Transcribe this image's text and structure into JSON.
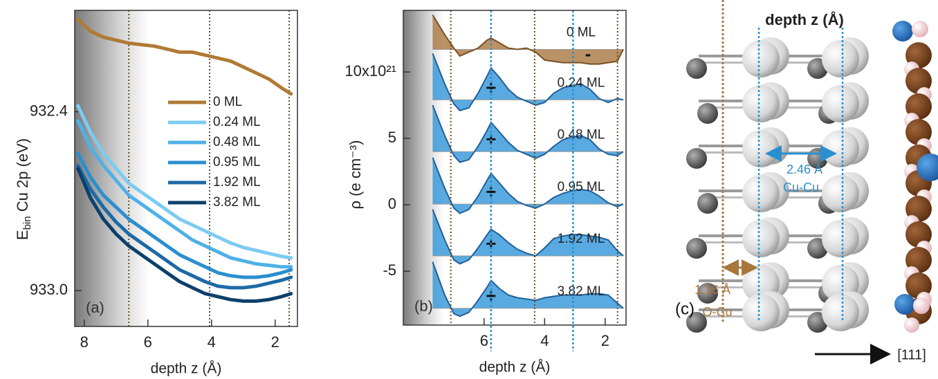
{
  "chart_data": [
    {
      "type": "line",
      "panel": "(a)",
      "xlabel": "depth z (Å)",
      "ylabel": [
        "E",
        "bin",
        " Cu 2p (eV)"
      ],
      "xlim": [
        8.3,
        1.3
      ],
      "ylim": [
        933.12,
        932.06
      ],
      "xticks": [
        8,
        6,
        4,
        2
      ],
      "yticks": [
        932.4,
        {
          "value": 933,
          "label": "933.0"
        }
      ],
      "layer_lines": [
        6.6,
        4.06,
        1.56
      ],
      "x": [
        8.2,
        7.8,
        7.4,
        7.0,
        6.6,
        6.2,
        5.8,
        5.4,
        5.0,
        4.6,
        4.2,
        3.8,
        3.4,
        3.0,
        2.6,
        2.2,
        1.8,
        1.5
      ],
      "series": [
        {
          "name": "0 ML",
          "color": "#b07a35",
          "values": [
            932.09,
            932.13,
            932.15,
            932.16,
            932.17,
            932.175,
            932.18,
            932.19,
            932.2,
            932.2,
            932.21,
            932.22,
            932.23,
            932.25,
            932.27,
            932.29,
            932.32,
            932.34
          ]
        },
        {
          "name": "0.24 ML",
          "color": "#7ccbf2",
          "values": [
            932.38,
            932.47,
            932.54,
            932.59,
            932.64,
            932.67,
            932.7,
            932.73,
            932.76,
            932.78,
            932.8,
            932.82,
            932.84,
            932.855,
            932.865,
            932.875,
            932.885,
            932.89
          ]
        },
        {
          "name": "0.48 ML",
          "color": "#4fb0e8",
          "values": [
            932.43,
            932.52,
            932.58,
            932.63,
            932.68,
            932.71,
            932.74,
            932.77,
            932.8,
            932.83,
            932.85,
            932.87,
            932.89,
            932.9,
            932.91,
            932.915,
            932.92,
            932.92
          ]
        },
        {
          "name": "0.95 ML",
          "color": "#2a8fd0",
          "values": [
            932.54,
            932.62,
            932.68,
            932.72,
            932.76,
            932.79,
            932.82,
            932.85,
            932.88,
            932.9,
            932.92,
            932.94,
            932.95,
            932.955,
            932.955,
            932.95,
            932.94,
            932.93
          ]
        },
        {
          "name": "1.92 ML",
          "color": "#1c6aa6",
          "values": [
            932.58,
            932.66,
            932.72,
            932.77,
            932.81,
            932.84,
            932.87,
            932.9,
            932.93,
            932.95,
            932.97,
            932.985,
            932.99,
            932.99,
            932.985,
            932.975,
            932.965,
            932.955
          ]
        },
        {
          "name": "3.82 ML",
          "color": "#0d3f6b",
          "values": [
            932.59,
            932.69,
            932.76,
            932.81,
            932.85,
            932.88,
            932.91,
            932.94,
            932.97,
            932.99,
            933.01,
            933.02,
            933.03,
            933.035,
            933.035,
            933.03,
            933.02,
            933.01
          ]
        }
      ]
    },
    {
      "type": "area",
      "panel": "(b)",
      "xlabel": "depth z (Å)",
      "ylabel": "ρ (e cm⁻³)",
      "xlim": [
        8.67,
        1.31
      ],
      "ylim": [
        -9.06,
        14.64
      ],
      "xticks": [
        6,
        4,
        2
      ],
      "yticks": [
        -5,
        0,
        5,
        {
          "value": 10,
          "label": "10x10²¹"
        }
      ],
      "layer_lines": [
        7.1,
        4.33,
        1.59
      ],
      "peak_lines": [
        5.77,
        3.06
      ],
      "x": [
        7.7,
        7.3,
        7.0,
        6.8,
        6.5,
        6.2,
        5.9,
        5.77,
        5.5,
        5.2,
        4.9,
        4.6,
        4.3,
        4.0,
        3.7,
        3.4,
        3.1,
        2.8,
        2.5,
        2.2,
        1.9,
        1.6,
        1.4
      ],
      "series": [
        {
          "name": "0 ML",
          "sign": "-",
          "color": "#a8773e",
          "values": [
            14.3,
            12.8,
            11.8,
            11.2,
            11.5,
            11.8,
            12.4,
            12.55,
            12.2,
            11.8,
            11.7,
            11.8,
            11.5,
            10.9,
            10.8,
            10.7,
            10.7,
            10.7,
            10.6,
            10.6,
            10.7,
            10.8,
            11.7
          ]
        },
        {
          "name": "0.24 ML",
          "sign": "+",
          "color": "#2f95d8",
          "values": [
            11.4,
            9.1,
            7.6,
            7.1,
            7.3,
            8.4,
            9.7,
            10.3,
            9.6,
            8.7,
            8.1,
            7.8,
            7.5,
            7.7,
            8.4,
            8.8,
            9.0,
            9.1,
            8.7,
            8.0,
            7.7,
            8.0,
            7.9
          ]
        },
        {
          "name": "0.48 ML",
          "sign": "+",
          "color": "#2f95d8",
          "values": [
            7.5,
            5.2,
            3.7,
            3.2,
            3.4,
            4.4,
            5.6,
            6.2,
            5.5,
            4.7,
            4.1,
            3.8,
            3.5,
            3.8,
            4.4,
            4.9,
            5.1,
            5.2,
            4.9,
            4.2,
            3.8,
            3.7,
            4.0
          ]
        },
        {
          "name": "0.95 ML",
          "sign": "+",
          "color": "#2f95d8",
          "values": [
            3.55,
            1.25,
            -0.25,
            -0.65,
            -0.35,
            0.65,
            1.85,
            2.35,
            1.65,
            0.85,
            0.25,
            -0.05,
            -0.25,
            0.05,
            0.55,
            0.85,
            1.05,
            1.15,
            1.05,
            0.65,
            0.15,
            -0.15,
            0.05
          ]
        },
        {
          "name": "1.92 ML",
          "sign": "+",
          "color": "#2f95d8",
          "values": [
            -0.35,
            -2.65,
            -4.15,
            -4.45,
            -4.15,
            -3.25,
            -2.25,
            -1.85,
            -2.25,
            -2.85,
            -3.35,
            -3.65,
            -3.85,
            -3.25,
            -2.55,
            -2.35,
            -2.25,
            -2.25,
            -2.35,
            -2.45,
            -2.65,
            -3.45,
            -3.85
          ]
        },
        {
          "name": "3.82 ML",
          "sign": "+",
          "color": "#2f95d8",
          "values": [
            -4.3,
            -6.8,
            -8.2,
            -8.4,
            -8.1,
            -7.2,
            -6.2,
            -5.7,
            -6.3,
            -6.8,
            -7.0,
            -7.1,
            -7.2,
            -7.0,
            -6.9,
            -6.8,
            -6.8,
            -6.8,
            -6.7,
            -6.7,
            -6.8,
            -7.4,
            -7.8
          ]
        }
      ]
    },
    {
      "type": "diagram",
      "panel": "(c)",
      "xlabel": "depth z (Å)",
      "annotations": [
        "2.46 Å",
        "Cu-Cu",
        "1.16 Å",
        "O-Cu"
      ],
      "direction": "[111]"
    }
  ]
}
